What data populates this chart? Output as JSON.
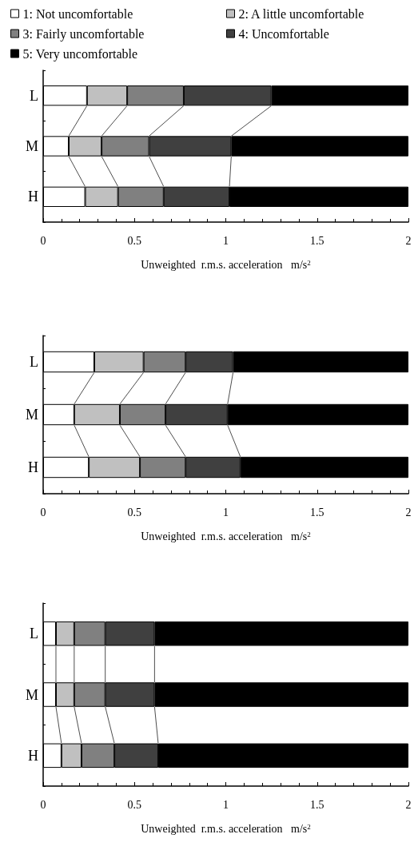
{
  "chart_data": [
    {
      "type": "bar",
      "orientation": "horizontal",
      "stacked": true,
      "categories": [
        "L",
        "M",
        "H"
      ],
      "xlim": [
        0,
        2
      ],
      "xticks": [
        0,
        0.5,
        1,
        1.5,
        2
      ],
      "xlabel": "Unweighted  r.m.s. acceleration   m/s$^{2}$",
      "legend": "top",
      "grid": false,
      "series": [
        {
          "name": "1: Not uncomfortable",
          "color": "#ffffff",
          "values": [
            0.24,
            0.14,
            0.23
          ]
        },
        {
          "name": "2: A little uncomfortable",
          "color": "#c0c0c0",
          "values": [
            0.22,
            0.18,
            0.18
          ]
        },
        {
          "name": "3: Fairly uncomfortable",
          "color": "#808080",
          "values": [
            0.31,
            0.26,
            0.25
          ]
        },
        {
          "name": "4: Uncomfortable",
          "color": "#404040",
          "values": [
            0.48,
            0.45,
            0.36
          ]
        },
        {
          "name": "5: Very uncomfortable",
          "color": "#000000",
          "values": [
            0.75,
            0.97,
            0.98
          ]
        }
      ]
    },
    {
      "type": "bar",
      "orientation": "horizontal",
      "stacked": true,
      "categories": [
        "L",
        "M",
        "H"
      ],
      "xlim": [
        0,
        2
      ],
      "xticks": [
        0,
        0.5,
        1,
        1.5,
        2
      ],
      "xlabel": "Unweighted  r.m.s. acceleration   m/s$^{2}$",
      "grid": false,
      "series": [
        {
          "color": "#ffffff",
          "values": [
            0.28,
            0.17,
            0.25
          ]
        },
        {
          "color": "#c0c0c0",
          "values": [
            0.27,
            0.25,
            0.28
          ]
        },
        {
          "color": "#808080",
          "values": [
            0.23,
            0.25,
            0.25
          ]
        },
        {
          "color": "#404040",
          "values": [
            0.26,
            0.34,
            0.3
          ]
        },
        {
          "color": "#000000",
          "values": [
            0.96,
            0.99,
            0.92
          ]
        }
      ]
    },
    {
      "type": "bar",
      "orientation": "horizontal",
      "stacked": true,
      "categories": [
        "L",
        "M",
        "H"
      ],
      "xlim": [
        0,
        2
      ],
      "xticks": [
        0,
        0.5,
        1,
        1.5,
        2
      ],
      "xlabel": "Unweighted  r.m.s. acceleration   m/s$^{2}$",
      "grid": false,
      "series": [
        {
          "color": "#ffffff",
          "values": [
            0.07,
            0.07,
            0.1
          ]
        },
        {
          "color": "#c0c0c0",
          "values": [
            0.1,
            0.1,
            0.11
          ]
        },
        {
          "color": "#808080",
          "values": [
            0.17,
            0.17,
            0.18
          ]
        },
        {
          "color": "#404040",
          "values": [
            0.27,
            0.27,
            0.24
          ]
        },
        {
          "color": "#000000",
          "values": [
            1.39,
            1.39,
            1.37
          ]
        }
      ]
    }
  ]
}
